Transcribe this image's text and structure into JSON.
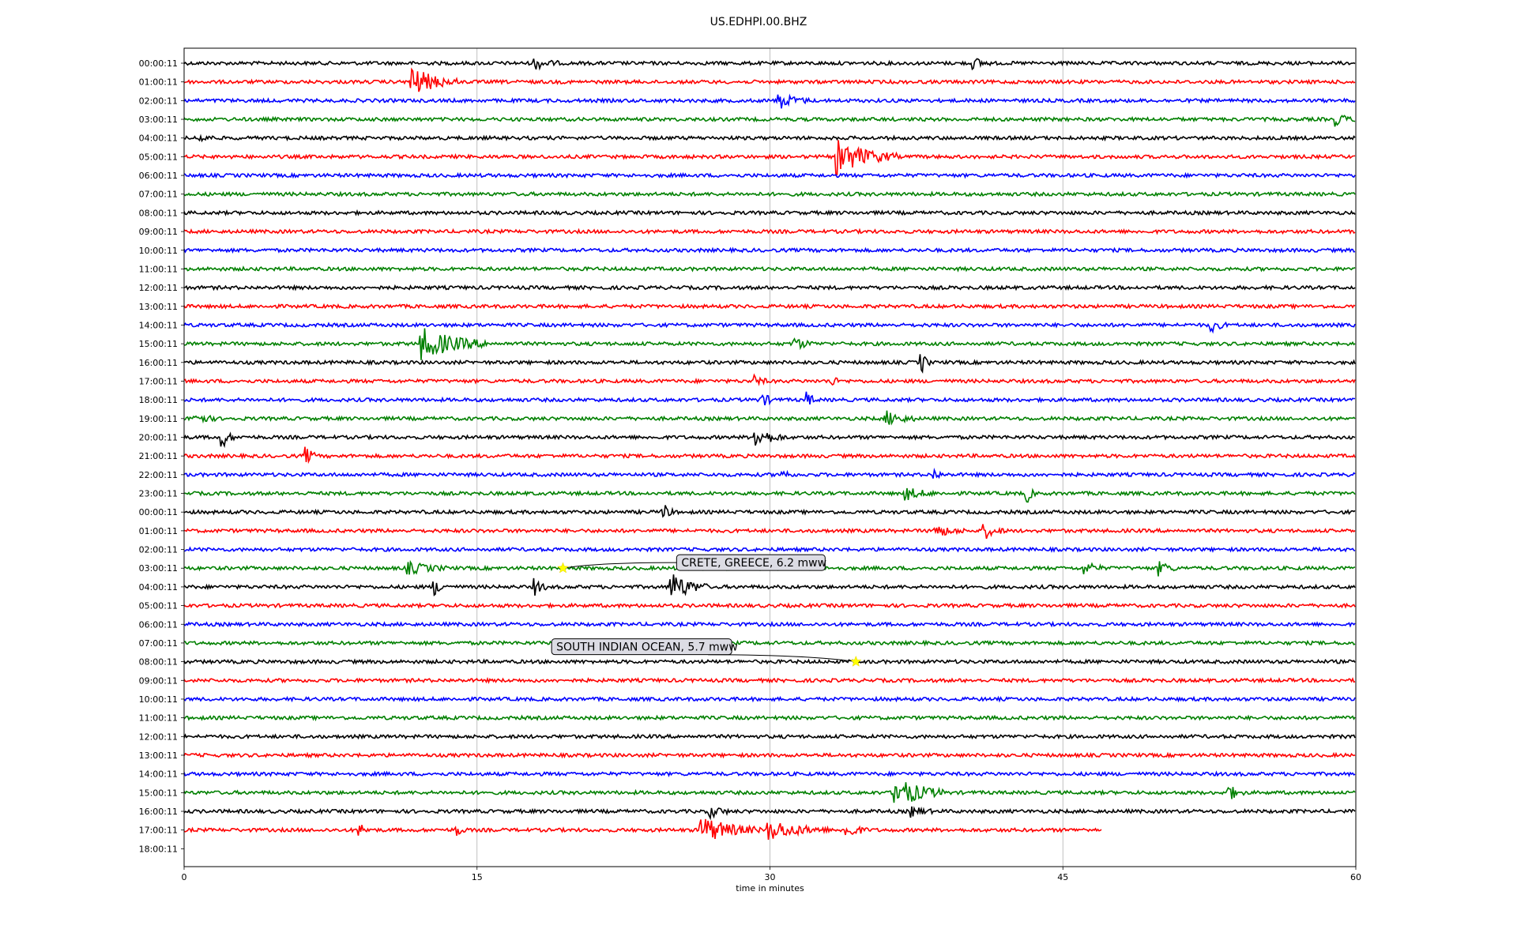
{
  "chart_data": {
    "type": "line",
    "title": "US.EDHPI.00.BHZ",
    "xlabel": "time in minutes",
    "ylabel": "",
    "xlim": [
      0,
      60
    ],
    "x_ticks": [
      0,
      15,
      30,
      45,
      60
    ],
    "grid": "vertical",
    "trace_colors": [
      "#000000",
      "#ff0000",
      "#0000ff",
      "#008000"
    ],
    "row_labels": [
      "00:00:11",
      "01:00:11",
      "02:00:11",
      "03:00:11",
      "04:00:11",
      "05:00:11",
      "06:00:11",
      "07:00:11",
      "08:00:11",
      "09:00:11",
      "10:00:11",
      "11:00:11",
      "12:00:11",
      "13:00:11",
      "14:00:11",
      "15:00:11",
      "16:00:11",
      "17:00:11",
      "18:00:11",
      "19:00:11",
      "20:00:11",
      "21:00:11",
      "22:00:11",
      "23:00:11",
      "00:00:11",
      "01:00:11",
      "02:00:11",
      "03:00:11",
      "04:00:11",
      "05:00:11",
      "06:00:11",
      "07:00:11",
      "08:00:11",
      "09:00:11",
      "10:00:11",
      "11:00:11",
      "12:00:11",
      "13:00:11",
      "14:00:11",
      "15:00:11",
      "16:00:11",
      "17:00:11",
      "18:00:11"
    ],
    "last_trace_end_minute": 47,
    "event_bursts": [
      {
        "row": 0,
        "minute": 18,
        "amp": 0.6,
        "dur": 1.2
      },
      {
        "row": 0,
        "minute": 40.5,
        "amp": 0.5,
        "dur": 0.8
      },
      {
        "row": 1,
        "minute": 11.6,
        "amp": 1.6,
        "dur": 2.4
      },
      {
        "row": 2,
        "minute": 30.5,
        "amp": 0.8,
        "dur": 1.5
      },
      {
        "row": 3,
        "minute": 59,
        "amp": 0.6,
        "dur": 1.0
      },
      {
        "row": 4,
        "minute": 0.8,
        "amp": 0.4,
        "dur": 0.8
      },
      {
        "row": 5,
        "minute": 33.5,
        "amp": 1.8,
        "dur": 3.0
      },
      {
        "row": 14,
        "minute": 52.6,
        "amp": 0.7,
        "dur": 0.8
      },
      {
        "row": 15,
        "minute": 12.2,
        "amp": 1.6,
        "dur": 3.5
      },
      {
        "row": 15,
        "minute": 31.3,
        "amp": 0.6,
        "dur": 1.0
      },
      {
        "row": 16,
        "minute": 37.8,
        "amp": 1.0,
        "dur": 0.4
      },
      {
        "row": 17,
        "minute": 29.3,
        "amp": 0.5,
        "dur": 0.6
      },
      {
        "row": 17,
        "minute": 33.2,
        "amp": 0.5,
        "dur": 0.4
      },
      {
        "row": 18,
        "minute": 29.6,
        "amp": 0.6,
        "dur": 0.8
      },
      {
        "row": 18,
        "minute": 32.0,
        "amp": 0.7,
        "dur": 0.4
      },
      {
        "row": 19,
        "minute": 0.6,
        "amp": 0.6,
        "dur": 1.0
      },
      {
        "row": 19,
        "minute": 36.0,
        "amp": 0.7,
        "dur": 1.5
      },
      {
        "row": 20,
        "minute": 2.0,
        "amp": 1.0,
        "dur": 0.6
      },
      {
        "row": 20,
        "minute": 29.3,
        "amp": 1.0,
        "dur": 1.5
      },
      {
        "row": 21,
        "minute": 6.3,
        "amp": 0.8,
        "dur": 0.6
      },
      {
        "row": 22,
        "minute": 30.7,
        "amp": 0.7,
        "dur": 0.4
      },
      {
        "row": 22,
        "minute": 38.5,
        "amp": 0.5,
        "dur": 0.4
      },
      {
        "row": 23,
        "minute": 37.0,
        "amp": 0.6,
        "dur": 1.5
      },
      {
        "row": 23,
        "minute": 43.2,
        "amp": 0.8,
        "dur": 0.4
      },
      {
        "row": 24,
        "minute": 24.6,
        "amp": 0.8,
        "dur": 0.5
      },
      {
        "row": 25,
        "minute": 38.5,
        "amp": 0.6,
        "dur": 1.5
      },
      {
        "row": 25,
        "minute": 41.0,
        "amp": 0.8,
        "dur": 1.0
      },
      {
        "row": 27,
        "minute": 11.5,
        "amp": 0.6,
        "dur": 2.0
      },
      {
        "row": 27,
        "minute": 46.2,
        "amp": 0.6,
        "dur": 1.0
      },
      {
        "row": 27,
        "minute": 50.0,
        "amp": 0.7,
        "dur": 0.8
      },
      {
        "row": 28,
        "minute": 12.8,
        "amp": 0.8,
        "dur": 0.8
      },
      {
        "row": 28,
        "minute": 18.0,
        "amp": 0.8,
        "dur": 0.6
      },
      {
        "row": 28,
        "minute": 25.0,
        "amp": 1.5,
        "dur": 1.8
      },
      {
        "row": 39,
        "minute": 36.5,
        "amp": 1.6,
        "dur": 2.5
      },
      {
        "row": 39,
        "minute": 53.5,
        "amp": 0.8,
        "dur": 0.8
      },
      {
        "row": 40,
        "minute": 27.0,
        "amp": 0.6,
        "dur": 1.0
      },
      {
        "row": 40,
        "minute": 37.3,
        "amp": 0.5,
        "dur": 1.0
      },
      {
        "row": 41,
        "minute": 26.5,
        "amp": 1.4,
        "dur": 3.0
      },
      {
        "row": 41,
        "minute": 30.0,
        "amp": 1.0,
        "dur": 3.0
      },
      {
        "row": 41,
        "minute": 34.0,
        "amp": 0.8,
        "dur": 1.0
      },
      {
        "row": 41,
        "minute": 9.0,
        "amp": 0.6,
        "dur": 0.6
      },
      {
        "row": 41,
        "minute": 14.0,
        "amp": 0.6,
        "dur": 0.4
      }
    ],
    "annotations": [
      {
        "label": "CRETE, GREECE, 6.2 mww",
        "row": 27,
        "minute": 19.4,
        "box_minute": 25.3,
        "box_row": 26.7
      },
      {
        "label": "SOUTH INDIAN OCEAN, 5.7 mww",
        "row": 32,
        "minute": 34.4,
        "box_minute": 18.9,
        "box_row": 31.2
      }
    ]
  }
}
